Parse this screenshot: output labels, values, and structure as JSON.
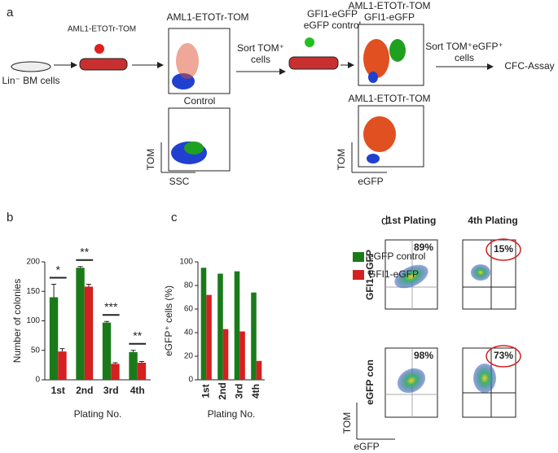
{
  "schematic": {
    "letter": "a",
    "virus_label": "AML1-ETOTr-TOM",
    "cells_label": "Lin⁻ BM cells",
    "plot1_title": "AML1-ETOTr-TOM",
    "control_title": "Control",
    "sort1": [
      "Sort TOM⁺",
      "cells"
    ],
    "virus2": [
      "GFI1-eGFP",
      "eGFP control"
    ],
    "plot2_title": [
      "AML1-ETOTr-TOM",
      "GFI1-eGFP"
    ],
    "sort2": [
      "Sort TOM⁺eGFP⁺",
      "cells"
    ],
    "assay": "CFC-Assay",
    "plot3_title": "AML1-ETOTr-TOM",
    "axes1": {
      "y": "TOM",
      "x": "SSC"
    },
    "axes2": {
      "y": "TOM",
      "x": "eGFP"
    }
  },
  "chart_data": [
    {
      "type": "bar",
      "letter": "b",
      "y_label": "Number of colonies",
      "x_label": "Plating No.",
      "categories": [
        "1st",
        "2nd",
        "3rd",
        "4th"
      ],
      "series": [
        {
          "name": "eGFP control",
          "color": "#1a7a1a",
          "values": [
            140,
            190,
            97,
            47
          ],
          "errors": [
            22,
            2,
            2,
            3
          ]
        },
        {
          "name": "GFI1-eGFP",
          "color": "#d42020",
          "values": [
            48,
            158,
            27,
            29
          ],
          "errors": [
            5,
            4,
            2,
            2
          ]
        }
      ],
      "significance": [
        "*",
        "**",
        "***",
        "**"
      ],
      "ylim": [
        0,
        200
      ],
      "yticks": [
        0,
        50,
        100,
        150,
        200
      ]
    },
    {
      "type": "bar",
      "letter": "c",
      "y_label": "eGFP⁺ cells (%)",
      "x_label": "Plating No.",
      "categories": [
        "1st",
        "2nd",
        "3rd",
        "4th"
      ],
      "series": [
        {
          "name": "eGFP control",
          "color": "#1a7a1a",
          "values": [
            95,
            90,
            92,
            74
          ]
        },
        {
          "name": "GFI1-eGFP",
          "color": "#d42020",
          "values": [
            72,
            43,
            41,
            16
          ]
        }
      ],
      "ylim": [
        0,
        100
      ],
      "yticks": [
        0,
        20,
        40,
        60,
        80,
        100
      ],
      "legend": "top-right"
    }
  ],
  "flow_panel": {
    "letter": "d",
    "columns": [
      "1st Plating",
      "4th Plating"
    ],
    "rows": [
      "GFI1-eGFP",
      "eGFP con"
    ],
    "percentages": [
      [
        "89%",
        "15%"
      ],
      [
        "98%",
        "73%"
      ]
    ],
    "axes": {
      "y": "TOM",
      "x": "eGFP"
    }
  }
}
